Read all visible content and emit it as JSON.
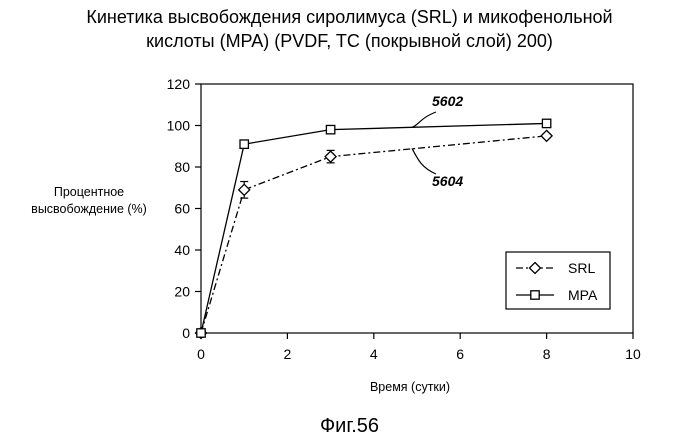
{
  "chart_data": {
    "type": "line",
    "title_line1": "Кинетика высвобождения сиролимуса (SRL) и микофенольной",
    "title_line2": "кислоты (MPA) (PVDF, TC (покрывной слой) 200)",
    "ylabel_line1": "Процентное",
    "ylabel_line2": "высвобождение (%)",
    "xlabel": "Время (сутки)",
    "xlim": [
      0,
      10
    ],
    "ylim": [
      0,
      120
    ],
    "xticks": [
      "0",
      "2",
      "4",
      "6",
      "8",
      "10"
    ],
    "yticks": [
      "0",
      "20",
      "40",
      "60",
      "80",
      "100",
      "120"
    ],
    "grid": false,
    "legend_position": "bottom-right",
    "series": [
      {
        "name": "SRL",
        "marker": "diamond",
        "line_style": "dash-dot",
        "x": [
          0,
          1,
          3,
          8
        ],
        "y": [
          0,
          69,
          85,
          95
        ],
        "err": [
          0,
          4,
          3,
          1
        ]
      },
      {
        "name": "MPA",
        "marker": "square",
        "line_style": "solid",
        "x": [
          0,
          1,
          3,
          8
        ],
        "y": [
          0,
          91,
          98,
          101
        ],
        "err": [
          0,
          0.5,
          1,
          1
        ]
      }
    ],
    "annotations": [
      {
        "text": "5602",
        "series": "MPA"
      },
      {
        "text": "5604",
        "series": "SRL"
      }
    ]
  },
  "caption": "Фиг.56"
}
